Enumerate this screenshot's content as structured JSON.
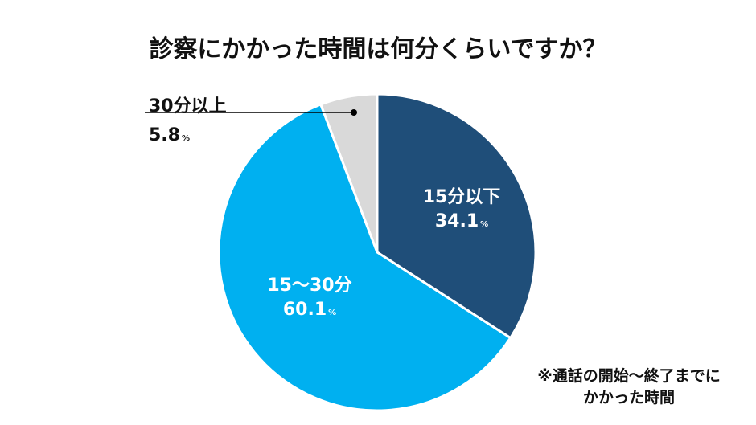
{
  "title": "診察にかかった時間は何分くらいですか？",
  "footnote": {
    "line1": "※通話の開始～終了までに",
    "line2": "かかった時間"
  },
  "chart_data": {
    "type": "pie",
    "title": "診察にかかった時間は何分くらいですか？",
    "pct_unit": "%",
    "slices": [
      {
        "label": "15分以下",
        "value": 34.1,
        "display": "34.1",
        "color": "#1f4e79"
      },
      {
        "label": "15～30分",
        "value": 60.1,
        "display": "60.1",
        "color": "#00b0f0"
      },
      {
        "label": "30分以上",
        "value": 5.8,
        "display": "5.8",
        "color": "#d9d9d9"
      }
    ],
    "start_angle": "12 o'clock, clockwise",
    "legend": "none"
  }
}
